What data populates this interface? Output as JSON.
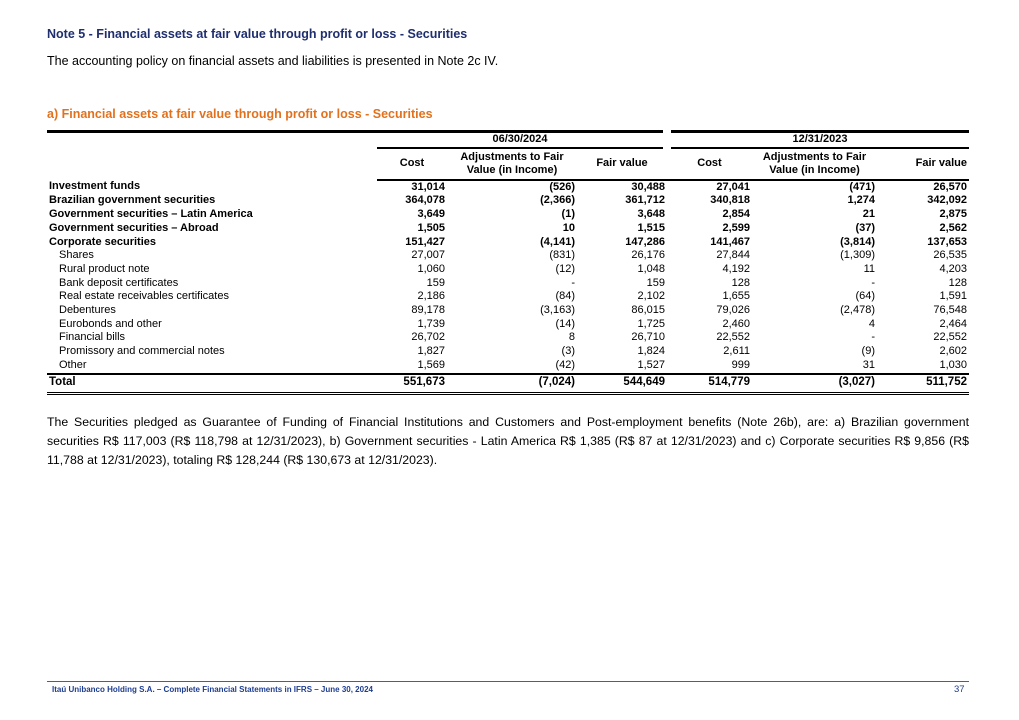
{
  "title": "Note 5 - Financial assets at fair value through profit or loss - Securities",
  "policy": "The accounting policy on financial assets and liabilities is presented in Note 2c IV.",
  "subtitle": "a) Financial assets at fair value through profit or loss - Securities",
  "table": {
    "periods": [
      "06/30/2024",
      "12/31/2023"
    ],
    "columns": [
      "Cost",
      "Adjustments to Fair Value (in Income)",
      "Fair value",
      "Cost",
      "Adjustments to Fair Value (in Income)",
      "Fair value"
    ],
    "rows": [
      {
        "label": "Investment funds",
        "bold": true,
        "v": [
          "31,014",
          "(526)",
          "30,488",
          "27,041",
          "(471)",
          "26,570"
        ]
      },
      {
        "label": "Brazilian government securities",
        "bold": true,
        "v": [
          "364,078",
          "(2,366)",
          "361,712",
          "340,818",
          "1,274",
          "342,092"
        ]
      },
      {
        "label": "Government securities – Latin America",
        "bold": true,
        "v": [
          "3,649",
          "(1)",
          "3,648",
          "2,854",
          "21",
          "2,875"
        ]
      },
      {
        "label": "Government securities – Abroad",
        "bold": true,
        "v": [
          "1,505",
          "10",
          "1,515",
          "2,599",
          "(37)",
          "2,562"
        ]
      },
      {
        "label": "Corporate securities",
        "bold": true,
        "v": [
          "151,427",
          "(4,141)",
          "147,286",
          "141,467",
          "(3,814)",
          "137,653"
        ]
      },
      {
        "label": "Shares",
        "bold": false,
        "v": [
          "27,007",
          "(831)",
          "26,176",
          "27,844",
          "(1,309)",
          "26,535"
        ]
      },
      {
        "label": "Rural product note",
        "bold": false,
        "v": [
          "1,060",
          "(12)",
          "1,048",
          "4,192",
          "11",
          "4,203"
        ]
      },
      {
        "label": "Bank deposit certificates",
        "bold": false,
        "v": [
          "159",
          "-",
          "159",
          "128",
          "-",
          "128"
        ]
      },
      {
        "label": "Real estate receivables certificates",
        "bold": false,
        "v": [
          "2,186",
          "(84)",
          "2,102",
          "1,655",
          "(64)",
          "1,591"
        ]
      },
      {
        "label": "Debentures",
        "bold": false,
        "v": [
          "89,178",
          "(3,163)",
          "86,015",
          "79,026",
          "(2,478)",
          "76,548"
        ]
      },
      {
        "label": "Eurobonds and other",
        "bold": false,
        "v": [
          "1,739",
          "(14)",
          "1,725",
          "2,460",
          "4",
          "2,464"
        ]
      },
      {
        "label": "Financial bills",
        "bold": false,
        "v": [
          "26,702",
          "8",
          "26,710",
          "22,552",
          "-",
          "22,552"
        ]
      },
      {
        "label": "Promissory and commercial notes",
        "bold": false,
        "v": [
          "1,827",
          "(3)",
          "1,824",
          "2,611",
          "(9)",
          "2,602"
        ]
      },
      {
        "label": "Other",
        "bold": false,
        "v": [
          "1,569",
          "(42)",
          "1,527",
          "999",
          "31",
          "1,030"
        ]
      }
    ],
    "total": {
      "label": "Total",
      "v": [
        "551,673",
        "(7,024)",
        "544,649",
        "514,779",
        "(3,027)",
        "511,752"
      ]
    }
  },
  "paragraph": "The Securities pledged as Guarantee of Funding of Financial Institutions and Customers and Post-employment benefits (Note 26b), are: a) Brazilian government securities R$ 117,003 (R$ 118,798 at 12/31/2023), b) Government securities - Latin America R$ 1,385 (R$ 87 at 12/31/2023) and c) Corporate securities R$ 9,856 (R$ 11,788 at 12/31/2023), totaling R$ 128,244 (R$ 130,673 at 12/31/2023).",
  "footer": {
    "text": "Itaú Unibanco Holding S.A. – Complete Financial Statements in IFRS – June 30, 2024",
    "page": "37"
  }
}
